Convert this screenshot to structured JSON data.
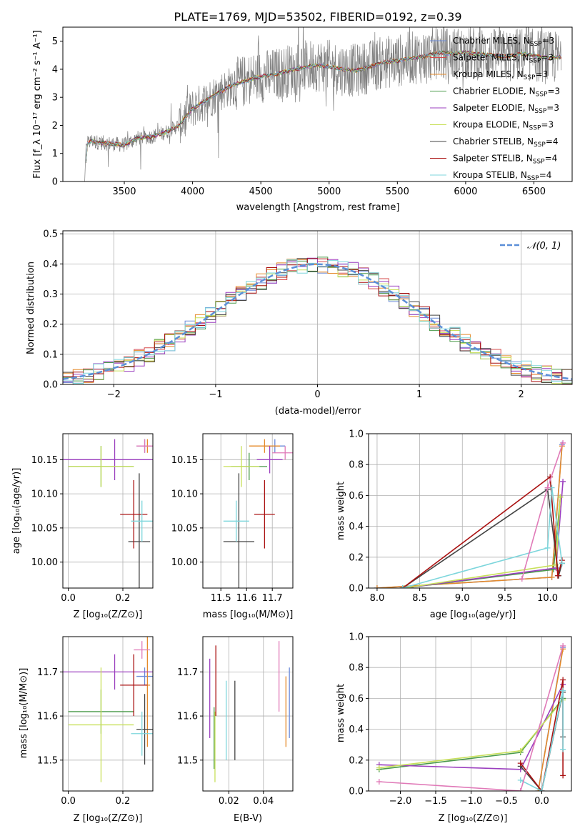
{
  "chart_data": [
    {
      "type": "line",
      "title": "PLATE=1769, MJD=53502, FIBERID=0192, z=0.39",
      "xlabel": "wavelength [Angstrom, rest frame]",
      "ylabel": "Flux [f_λ 10⁻¹⁷ erg cm⁻² s⁻¹ A⁻¹]",
      "xlim": [
        3050,
        6780
      ],
      "ylim": [
        0,
        5.5
      ],
      "xticks": [
        "3500",
        "4000",
        "4500",
        "5000",
        "5500",
        "6000",
        "6500"
      ],
      "xtick_values": [
        3500,
        4000,
        4500,
        5000,
        5500,
        6000,
        6500
      ],
      "yticks": [
        "0",
        "1",
        "2",
        "3",
        "4",
        "5"
      ],
      "ytick_values": [
        0,
        1,
        2,
        3,
        4,
        5
      ],
      "data_series": {
        "name": "",
        "color": "#808080",
        "x": [
          3210,
          3230,
          3260,
          3300,
          3400,
          3500,
          3600,
          3700,
          3800,
          3900,
          4000,
          4100,
          4200,
          4300,
          4400,
          4500,
          4600,
          4700,
          4800,
          4900,
          5000,
          5100,
          5200,
          5300,
          5400,
          5500,
          5600,
          5700,
          5800,
          5900,
          6000,
          6100,
          6200,
          6300,
          6400,
          6500,
          6600,
          6700
        ],
        "y": [
          0,
          1.35,
          1.45,
          1.4,
          1.35,
          1.3,
          1.55,
          1.6,
          1.75,
          2.0,
          2.6,
          2.9,
          3.2,
          3.45,
          3.6,
          3.75,
          3.8,
          3.95,
          4.05,
          4.15,
          4.1,
          4.0,
          3.95,
          4.1,
          4.25,
          4.3,
          4.4,
          4.45,
          4.6,
          4.55,
          4.6,
          4.55,
          4.5,
          4.45,
          4.55,
          4.5,
          4.4,
          4.45
        ]
      },
      "legend_position": "upper right",
      "series": [
        {
          "name": "Chabrier MILES, N_SSP=3",
          "label_main": "Chabrier MILES, N",
          "label_sub": "SSP",
          "label_tail": "=3",
          "color": "#6a8ad8"
        },
        {
          "name": "Salpeter MILES, N_SSP=3",
          "label_main": "Salpeter MILES, N",
          "label_sub": "SSP",
          "label_tail": "=3",
          "color": "#d64b4b"
        },
        {
          "name": "Kroupa MILES, N_SSP=3",
          "label_main": "Kroupa MILES, N",
          "label_sub": "SSP",
          "label_tail": "=3",
          "color": "#e58a2a"
        },
        {
          "name": "Chabrier ELODIE, N_SSP=3",
          "label_main": "Chabrier ELODIE, N",
          "label_sub": "SSP",
          "label_tail": "=3",
          "color": "#4a9a4a"
        },
        {
          "name": "Salpeter ELODIE, N_SSP=3",
          "label_main": "Salpeter ELODIE, N",
          "label_sub": "SSP",
          "label_tail": "=3",
          "color": "#9b3fbf"
        },
        {
          "name": "Kroupa ELODIE, N_SSP=3",
          "label_main": "Kroupa ELODIE, N",
          "label_sub": "SSP",
          "label_tail": "=3",
          "color": "#c8e05a"
        },
        {
          "name": "Chabrier STELIB, N_SSP=4",
          "label_main": "Chabrier STELIB, N",
          "label_sub": "SSP",
          "label_tail": "=4",
          "color": "#444444"
        },
        {
          "name": "Salpeter STELIB, N_SSP=4",
          "label_main": "Salpeter STELIB, N",
          "label_sub": "SSP",
          "label_tail": "=4",
          "color": "#aa1111"
        },
        {
          "name": "Kroupa STELIB, N_SSP=4",
          "label_main": "Kroupa STELIB, N",
          "label_sub": "SSP",
          "label_tail": "=4",
          "color": "#7dd6dc"
        }
      ]
    },
    {
      "type": "line",
      "title": "",
      "xlabel": "(data-model)/error",
      "ylabel": "Normed distribution",
      "xlim": [
        -2.5,
        2.5
      ],
      "ylim": [
        0,
        0.51
      ],
      "xticks": [
        "−2",
        "−1",
        "0",
        "1",
        "2"
      ],
      "xtick_values": [
        -2,
        -1,
        0,
        1,
        2
      ],
      "yticks": [
        "0.0",
        "0.1",
        "0.2",
        "0.3",
        "0.4",
        "0.5"
      ],
      "ytick_values": [
        0,
        0.1,
        0.2,
        0.3,
        0.4,
        0.5
      ],
      "grid": true,
      "legend": {
        "label": "𝒩(0, 1)",
        "color": "#5b8fd8",
        "style": "dashed",
        "position": "upper right"
      }
    },
    {
      "type": "scatter",
      "title": "",
      "xlabel": "Z [log₁₀(Z/Z⊙)]",
      "ylabel": "age  [log₁₀(age/yr)]",
      "xlim": [
        -0.02,
        0.31
      ],
      "ylim": [
        9.962,
        10.188
      ],
      "xticks": [
        "0.0",
        "0.2"
      ],
      "xtick_values": [
        0,
        0.2
      ],
      "yticks": [
        "10.00",
        "10.05",
        "10.10",
        "10.15"
      ],
      "ytick_values": [
        10.0,
        10.05,
        10.1,
        10.15
      ],
      "points": [
        {
          "color": "#6a8ad8",
          "x": 0.28,
          "xerr": 0.03,
          "y": 10.17,
          "yerr": 0.01
        },
        {
          "color": "#e58a2a",
          "x": 0.29,
          "xerr": 0.01,
          "y": 10.17,
          "yerr": 0.01
        },
        {
          "color": "#4a9a4a",
          "x": 0.12,
          "xerr": 0.12,
          "y": 10.14,
          "yerr": 0.03
        },
        {
          "color": "#9b3fbf",
          "x": 0.17,
          "xerr": 0.2,
          "y": 10.15,
          "yerr": 0.03
        },
        {
          "color": "#c8e05a",
          "x": 0.12,
          "xerr": 0.12,
          "y": 10.14,
          "yerr": 0.03
        },
        {
          "color": "#444444",
          "x": 0.26,
          "xerr": 0.04,
          "y": 10.03,
          "yerr": 0.1
        },
        {
          "color": "#aa1111",
          "x": 0.24,
          "xerr": 0.05,
          "y": 10.07,
          "yerr": 0.05
        },
        {
          "color": "#7dd6dc",
          "x": 0.27,
          "xerr": 0.04,
          "y": 10.06,
          "yerr": 0.03
        },
        {
          "color": "#e07ab8",
          "x": 0.28,
          "xerr": 0.03,
          "y": 10.17,
          "yerr": 0.01
        }
      ]
    },
    {
      "type": "scatter",
      "title": "",
      "xlabel": "mass [log₁₀(M/M⊙)]",
      "ylabel": "",
      "xlim": [
        11.43,
        11.78
      ],
      "ylim": [
        9.962,
        10.188
      ],
      "xticks": [
        "11.5",
        "11.6",
        "11.7"
      ],
      "xtick_values": [
        11.5,
        11.6,
        11.7
      ],
      "yticks": [
        "10.00",
        "10.05",
        "10.10",
        "10.15"
      ],
      "ytick_values": [
        10.0,
        10.05,
        10.1,
        10.15
      ],
      "points": [
        {
          "color": "#6a8ad8",
          "x": 11.71,
          "xerr": 0.04,
          "y": 10.17,
          "yerr": 0.01
        },
        {
          "color": "#e58a2a",
          "x": 11.67,
          "xerr": 0.06,
          "y": 10.17,
          "yerr": 0.01
        },
        {
          "color": "#4a9a4a",
          "x": 11.61,
          "xerr": 0.07,
          "y": 10.14,
          "yerr": 0.02
        },
        {
          "color": "#9b3fbf",
          "x": 11.69,
          "xerr": 0.05,
          "y": 10.15,
          "yerr": 0.02
        },
        {
          "color": "#c8e05a",
          "x": 11.58,
          "xerr": 0.07,
          "y": 10.14,
          "yerr": 0.03
        },
        {
          "color": "#444444",
          "x": 11.57,
          "xerr": 0.06,
          "y": 10.03,
          "yerr": 0.1
        },
        {
          "color": "#aa1111",
          "x": 11.67,
          "xerr": 0.04,
          "y": 10.07,
          "yerr": 0.05
        },
        {
          "color": "#7dd6dc",
          "x": 11.56,
          "xerr": 0.05,
          "y": 10.06,
          "yerr": 0.03
        },
        {
          "color": "#e07ab8",
          "x": 11.75,
          "xerr": 0.05,
          "y": 10.16,
          "yerr": 0.01
        }
      ]
    },
    {
      "type": "line",
      "title": "",
      "xlabel": "age  [log₁₀(age/yr)]",
      "ylabel": "mass weight",
      "xlim": [
        7.9,
        10.28
      ],
      "ylim": [
        0,
        1
      ],
      "xticks": [
        "8.0",
        "8.5",
        "9.0",
        "9.5",
        "10.0"
      ],
      "xtick_values": [
        8,
        8.5,
        9,
        9.5,
        10
      ],
      "yticks": [
        "0.0",
        "0.2",
        "0.4",
        "0.6",
        "0.8",
        "1.0"
      ],
      "ytick_values": [
        0,
        0.2,
        0.4,
        0.6,
        0.8,
        1.0
      ],
      "grid": true,
      "series": [
        {
          "color": "#6a8ad8",
          "x": [
            8.0,
            10.05,
            10.17
          ],
          "y": [
            0.0,
            0.07,
            0.93
          ]
        },
        {
          "color": "#e58a2a",
          "x": [
            8.0,
            10.05,
            10.17
          ],
          "y": [
            0.0,
            0.07,
            0.92
          ]
        },
        {
          "color": "#4a9a4a",
          "x": [
            8.32,
            10.07,
            10.15
          ],
          "y": [
            0.0,
            0.12,
            0.59
          ]
        },
        {
          "color": "#9b3fbf",
          "x": [
            8.32,
            10.1,
            10.18
          ],
          "y": [
            0.0,
            0.13,
            0.69
          ]
        },
        {
          "color": "#c8e05a",
          "x": [
            8.32,
            10.1,
            10.15
          ],
          "y": [
            0.0,
            0.15,
            0.59
          ]
        },
        {
          "color": "#444444",
          "x": [
            8.3,
            10.0,
            10.13,
            10.17
          ],
          "y": [
            0.0,
            0.64,
            0.08,
            0.16
          ]
        },
        {
          "color": "#aa1111",
          "x": [
            8.3,
            10.03,
            10.12,
            10.17
          ],
          "y": [
            0.0,
            0.72,
            0.08,
            0.18
          ]
        },
        {
          "color": "#7dd6dc",
          "x": [
            8.3,
            10.0,
            10.05,
            10.17
          ],
          "y": [
            0.0,
            0.26,
            0.65,
            0.16
          ]
        },
        {
          "color": "#e07ab8",
          "x": [
            9.7,
            10.0,
            10.18
          ],
          "y": [
            0.06,
            0.65,
            0.94
          ]
        }
      ]
    },
    {
      "type": "scatter",
      "title": "",
      "xlabel": "Z [log₁₀(Z/Z⊙)]",
      "ylabel": "mass [log₁₀(M/M⊙)]",
      "xlim": [
        -0.02,
        0.31
      ],
      "ylim": [
        11.43,
        11.78
      ],
      "xticks": [
        "0.0",
        "0.2"
      ],
      "xtick_values": [
        0,
        0.2
      ],
      "yticks": [
        "11.5",
        "11.6",
        "11.7"
      ],
      "ytick_values": [
        11.5,
        11.6,
        11.7
      ],
      "points": [
        {
          "color": "#6a8ad8",
          "x": 0.28,
          "xerr": 0.03,
          "y": 11.69,
          "yerr": 0.02
        },
        {
          "color": "#e58a2a",
          "x": 0.29,
          "xerr": 0.01,
          "y": 11.67,
          "yerr": 0.14
        },
        {
          "color": "#4a9a4a",
          "x": 0.12,
          "xerr": 0.12,
          "y": 11.61,
          "yerr": 0.05
        },
        {
          "color": "#9b3fbf",
          "x": 0.17,
          "xerr": 0.2,
          "y": 11.7,
          "yerr": 0.04
        },
        {
          "color": "#c8e05a",
          "x": 0.12,
          "xerr": 0.12,
          "y": 11.58,
          "yerr": 0.13
        },
        {
          "color": "#444444",
          "x": 0.28,
          "xerr": 0.03,
          "y": 11.57,
          "yerr": 0.08
        },
        {
          "color": "#aa1111",
          "x": 0.24,
          "xerr": 0.05,
          "y": 11.67,
          "yerr": 0.07
        },
        {
          "color": "#7dd6dc",
          "x": 0.27,
          "xerr": 0.04,
          "y": 11.56,
          "yerr": 0.05
        },
        {
          "color": "#e07ab8",
          "x": 0.27,
          "xerr": 0.03,
          "y": 11.75,
          "yerr": 0.02
        }
      ]
    },
    {
      "type": "scatter",
      "title": "",
      "xlabel": "E(B-V)",
      "ylabel": "",
      "xlim": [
        0.005,
        0.057
      ],
      "ylim": [
        11.43,
        11.78
      ],
      "xticks": [
        "0.02",
        "0.04"
      ],
      "xtick_values": [
        0.02,
        0.04
      ],
      "yticks": [
        "11.7",
        "11.6",
        "11.5"
      ],
      "ytick_values": [
        11.7,
        11.6,
        11.5
      ],
      "points": [
        {
          "color": "#6a8ad8",
          "x": 0.055,
          "y": 11.63,
          "yerr": 0.08
        },
        {
          "color": "#e58a2a",
          "x": 0.053,
          "y": 11.61,
          "yerr": 0.08
        },
        {
          "color": "#4a9a4a",
          "x": 0.0115,
          "y": 11.55,
          "yerr": 0.07
        },
        {
          "color": "#9b3fbf",
          "x": 0.009,
          "y": 11.64,
          "yerr": 0.09
        },
        {
          "color": "#c8e05a",
          "x": 0.012,
          "y": 11.53,
          "yerr": 0.08
        },
        {
          "color": "#444444",
          "x": 0.0235,
          "y": 11.59,
          "yerr": 0.09
        },
        {
          "color": "#aa1111",
          "x": 0.0125,
          "y": 11.68,
          "yerr": 0.08
        },
        {
          "color": "#7dd6dc",
          "x": 0.0185,
          "y": 11.59,
          "yerr": 0.09
        },
        {
          "color": "#e07ab8",
          "x": 0.049,
          "y": 11.69,
          "yerr": 0.08
        }
      ]
    },
    {
      "type": "line",
      "title": "",
      "xlabel": "Z [log₁₀(Z/Z⊙)]",
      "ylabel": "mass weight",
      "xlim": [
        -2.45,
        0.42
      ],
      "ylim": [
        0,
        1
      ],
      "xticks": [
        "−2.0",
        "−1.5",
        "−1.0",
        "−0.5",
        "0.0"
      ],
      "xtick_values": [
        -2,
        -1.5,
        -1,
        -0.5,
        0
      ],
      "yticks": [
        "0.0",
        "0.2",
        "0.4",
        "0.6",
        "0.8",
        "1.0"
      ],
      "ytick_values": [
        0,
        0.2,
        0.4,
        0.6,
        0.8,
        1.0
      ],
      "grid": true,
      "series": [
        {
          "color": "#6a8ad8",
          "x": [
            -0.05,
            0.3
          ],
          "y": [
            0.0,
            0.93
          ]
        },
        {
          "color": "#e58a2a",
          "x": [
            -0.05,
            0.3
          ],
          "y": [
            0.0,
            0.92
          ]
        },
        {
          "color": "#4a9a4a",
          "x": [
            -2.3,
            -0.3,
            0.3
          ],
          "y": [
            0.14,
            0.25,
            0.6
          ]
        },
        {
          "color": "#9b3fbf",
          "x": [
            -2.3,
            -0.3,
            0.3
          ],
          "y": [
            0.17,
            0.14,
            0.69
          ]
        },
        {
          "color": "#c8e05a",
          "x": [
            -2.3,
            -0.3,
            0.3
          ],
          "y": [
            0.15,
            0.26,
            0.59
          ]
        },
        {
          "color": "#444444",
          "x": [
            -0.3,
            0.0,
            0.3,
            0.3
          ],
          "y": [
            0.16,
            0.0,
            0.64,
            0.35
          ]
        },
        {
          "color": "#aa1111",
          "x": [
            -0.3,
            0.0,
            0.3,
            0.3
          ],
          "y": [
            0.18,
            0.0,
            0.72,
            0.1
          ]
        },
        {
          "color": "#7dd6dc",
          "x": [
            -0.3,
            0.0,
            0.3,
            0.3
          ],
          "y": [
            0.07,
            0.0,
            0.65,
            0.27
          ]
        },
        {
          "color": "#e07ab8",
          "x": [
            -2.3,
            -0.3,
            0.3
          ],
          "y": [
            0.06,
            0.0,
            0.94
          ]
        }
      ]
    }
  ]
}
